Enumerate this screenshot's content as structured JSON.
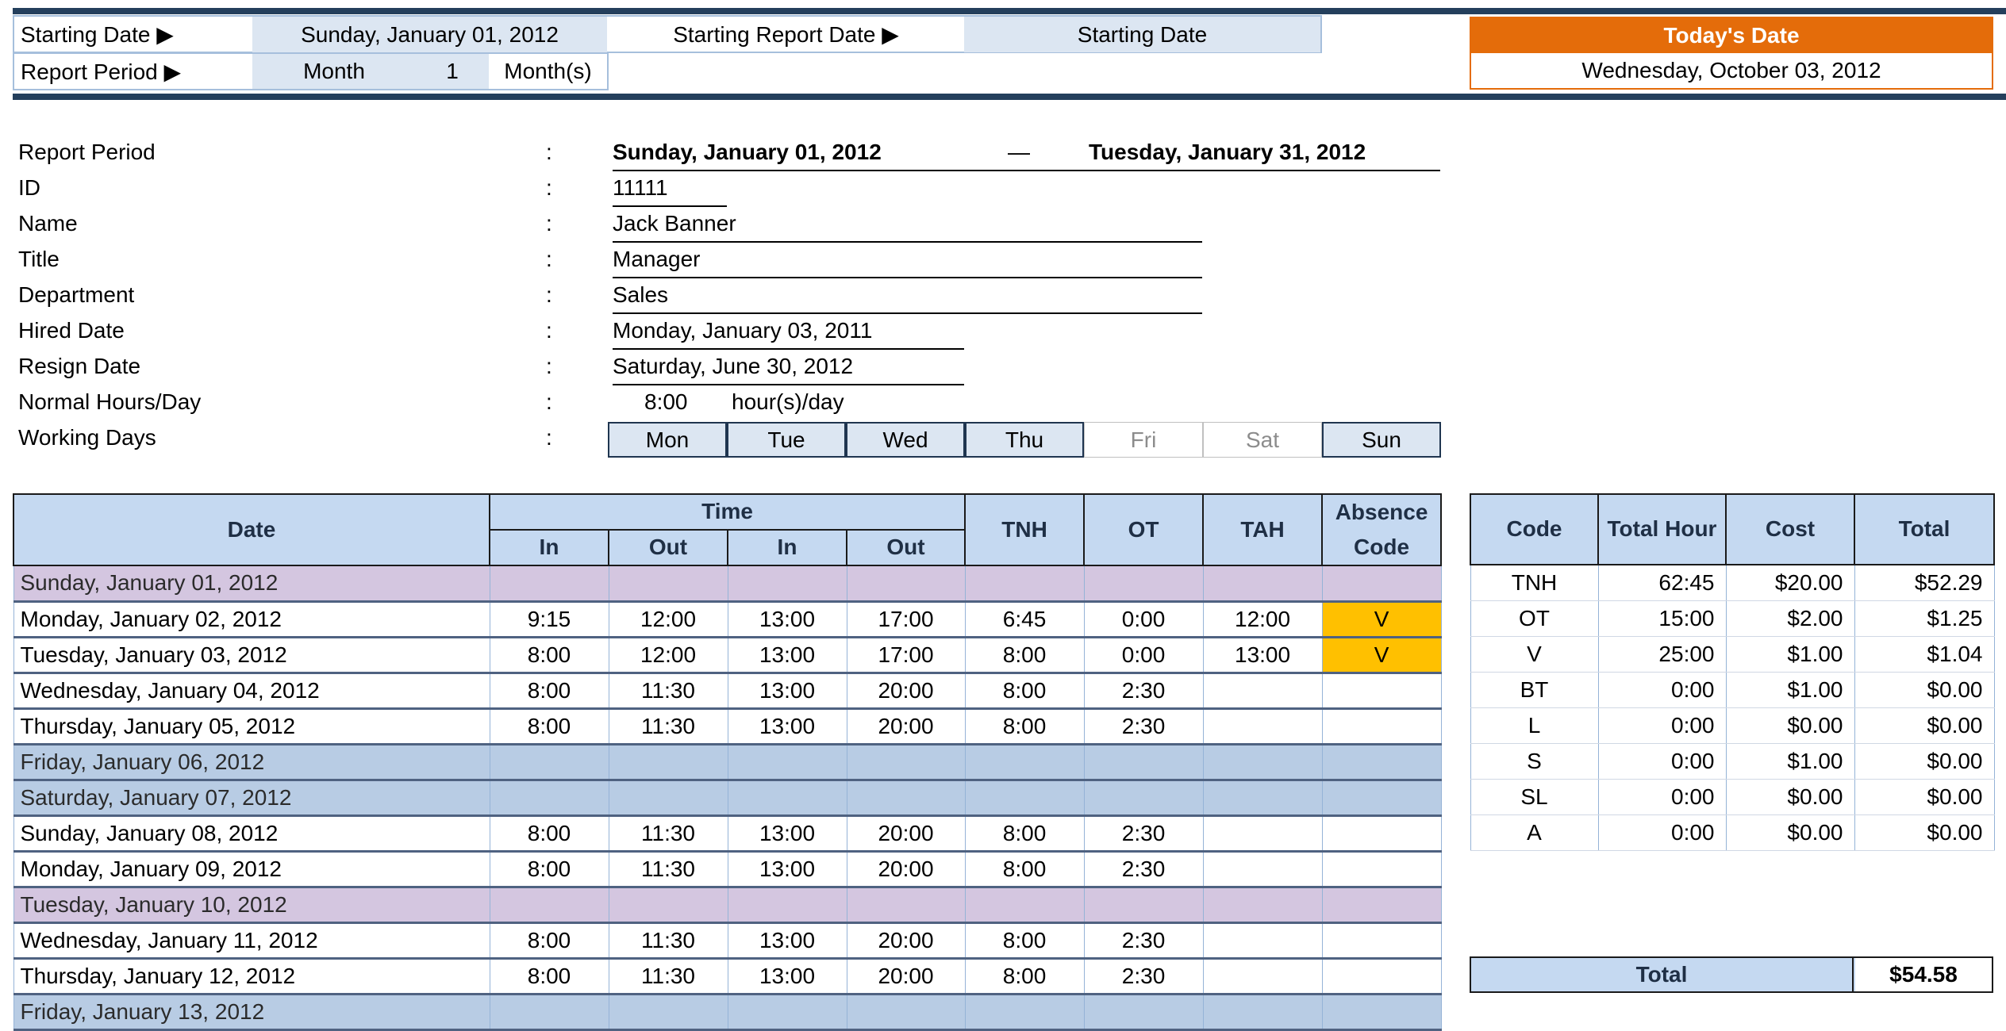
{
  "header": {
    "starting_date_label": "Starting Date ▶",
    "starting_date_value": "Sunday, January 01, 2012",
    "starting_report_date_label": "Starting Report Date ▶",
    "starting_report_date_value": "Starting Date",
    "report_period_label": "Report Period ▶",
    "report_period_unit": "Month",
    "report_period_count": "1",
    "report_period_suffix": "Month(s)",
    "todays_date_label": "Today's Date",
    "todays_date_value": "Wednesday, October 03, 2012",
    "accent_color": "#e46c0a"
  },
  "info": {
    "colon": ":",
    "report_period_label": "Report Period",
    "report_period_start": "Sunday, January 01, 2012",
    "report_period_dash": "—",
    "report_period_end": "Tuesday, January 31, 2012",
    "id_label": "ID",
    "id_value": "11111",
    "name_label": "Name",
    "name_value": "Jack Banner",
    "title_label": "Title",
    "title_value": "Manager",
    "department_label": "Department",
    "department_value": "Sales",
    "hired_label": "Hired Date",
    "hired_value": "Monday, January 03, 2011",
    "resign_label": "Resign Date",
    "resign_value": "Saturday, June 30, 2012",
    "hours_label": "Normal Hours/Day",
    "hours_value": "8:00",
    "hours_unit": "hour(s)/day",
    "working_days_label": "Working Days",
    "working_days": [
      {
        "label": "Mon",
        "active": true
      },
      {
        "label": "Tue",
        "active": true
      },
      {
        "label": "Wed",
        "active": true
      },
      {
        "label": "Thu",
        "active": true
      },
      {
        "label": "Fri",
        "active": false
      },
      {
        "label": "Sat",
        "active": false
      },
      {
        "label": "Sun",
        "active": true
      }
    ]
  },
  "timesheet": {
    "headers": {
      "date": "Date",
      "time": "Time",
      "in": "In",
      "out": "Out",
      "tnh": "TNH",
      "ot": "OT",
      "tah": "TAH",
      "absence": "Absence",
      "code": "Code"
    },
    "rows": [
      {
        "date": "Sunday, January 01, 2012",
        "type": "holiday",
        "cells": [
          "",
          "",
          "",
          "",
          "",
          "",
          "",
          ""
        ]
      },
      {
        "date": "Monday, January 02, 2012",
        "type": "normal",
        "cells": [
          "9:15",
          "12:00",
          "13:00",
          "17:00",
          "6:45",
          "0:00",
          "12:00",
          "V"
        ]
      },
      {
        "date": "Tuesday, January 03, 2012",
        "type": "normal",
        "cells": [
          "8:00",
          "12:00",
          "13:00",
          "17:00",
          "8:00",
          "0:00",
          "13:00",
          "V"
        ]
      },
      {
        "date": "Wednesday, January 04, 2012",
        "type": "normal",
        "cells": [
          "8:00",
          "11:30",
          "13:00",
          "20:00",
          "8:00",
          "2:30",
          "",
          ""
        ]
      },
      {
        "date": "Thursday, January 05, 2012",
        "type": "normal",
        "cells": [
          "8:00",
          "11:30",
          "13:00",
          "20:00",
          "8:00",
          "2:30",
          "",
          ""
        ]
      },
      {
        "date": "Friday, January 06, 2012",
        "type": "nonworking",
        "cells": [
          "",
          "",
          "",
          "",
          "",
          "",
          "",
          ""
        ]
      },
      {
        "date": "Saturday, January 07, 2012",
        "type": "nonworking",
        "cells": [
          "",
          "",
          "",
          "",
          "",
          "",
          "",
          ""
        ]
      },
      {
        "date": "Sunday, January 08, 2012",
        "type": "normal",
        "cells": [
          "8:00",
          "11:30",
          "13:00",
          "20:00",
          "8:00",
          "2:30",
          "",
          ""
        ]
      },
      {
        "date": "Monday, January 09, 2012",
        "type": "normal",
        "cells": [
          "8:00",
          "11:30",
          "13:00",
          "20:00",
          "8:00",
          "2:30",
          "",
          ""
        ]
      },
      {
        "date": "Tuesday, January 10, 2012",
        "type": "holiday",
        "cells": [
          "",
          "",
          "",
          "",
          "",
          "",
          "",
          ""
        ]
      },
      {
        "date": "Wednesday, January 11, 2012",
        "type": "normal",
        "cells": [
          "8:00",
          "11:30",
          "13:00",
          "20:00",
          "8:00",
          "2:30",
          "",
          ""
        ]
      },
      {
        "date": "Thursday, January 12, 2012",
        "type": "normal",
        "cells": [
          "8:00",
          "11:30",
          "13:00",
          "20:00",
          "8:00",
          "2:30",
          "",
          ""
        ]
      },
      {
        "date": "Friday, January 13, 2012",
        "type": "nonworking",
        "cells": [
          "",
          "",
          "",
          "",
          "",
          "",
          "",
          ""
        ]
      }
    ]
  },
  "summary": {
    "headers": {
      "code": "Code",
      "total_hour": "Total Hour",
      "cost": "Cost",
      "total": "Total"
    },
    "rows": [
      {
        "code": "TNH",
        "hours": "62:45",
        "cost": "$20.00",
        "total": "$52.29"
      },
      {
        "code": "OT",
        "hours": "15:00",
        "cost": "$2.00",
        "total": "$1.25"
      },
      {
        "code": "V",
        "hours": "25:00",
        "cost": "$1.00",
        "total": "$1.04"
      },
      {
        "code": "BT",
        "hours": "0:00",
        "cost": "$1.00",
        "total": "$0.00"
      },
      {
        "code": "L",
        "hours": "0:00",
        "cost": "$0.00",
        "total": "$0.00"
      },
      {
        "code": "S",
        "hours": "0:00",
        "cost": "$1.00",
        "total": "$0.00"
      },
      {
        "code": "SL",
        "hours": "0:00",
        "cost": "$0.00",
        "total": "$0.00"
      },
      {
        "code": "A",
        "hours": "0:00",
        "cost": "$0.00",
        "total": "$0.00"
      }
    ],
    "grand_total_label": "Total",
    "grand_total_value": "$54.58"
  }
}
